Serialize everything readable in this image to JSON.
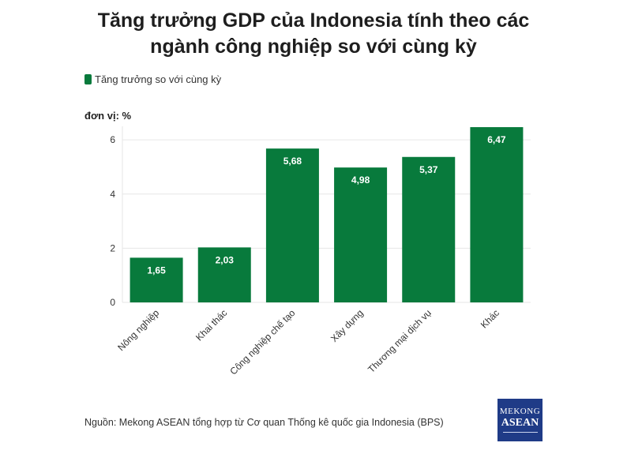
{
  "title_line1": "Tăng trưởng GDP của Indonesia tính theo các",
  "title_line2": "ngành công nghiệp so với cùng kỳ",
  "unit_label": "đơn vị: %",
  "source": "Nguồn: Mekong ASEAN tổng hợp từ Cơ quan Thống kê quốc gia Indonesia (BPS)",
  "logo": {
    "line1": "MEKONG",
    "line2": "ASEAN"
  },
  "colors": {
    "bar": "#087a3c",
    "grid": "#e6e6e6",
    "axis": "#333333",
    "label": "#ffffff"
  },
  "chart_data": {
    "type": "bar",
    "title": "Tăng trưởng GDP của Indonesia tính theo các ngành công nghiệp so với cùng kỳ",
    "ylabel": "đơn vị: %",
    "categories": [
      "Nông nghiệp",
      "Khai thác",
      "Công nghiệp chế tạo",
      "Xây dựng",
      "Thương mại dịch vụ",
      "Khác"
    ],
    "series": [
      {
        "name": "Tăng trưởng so với cùng kỳ",
        "values": [
          1.65,
          2.03,
          5.68,
          4.98,
          5.37,
          6.47
        ],
        "labels": [
          "1,65",
          "2,03",
          "5,68",
          "4,98",
          "5,37",
          "6,47"
        ]
      }
    ],
    "ylim": [
      0,
      6.5
    ],
    "yticks": [
      0,
      2,
      4,
      6
    ],
    "grid": true,
    "legend_position": "top-left"
  }
}
